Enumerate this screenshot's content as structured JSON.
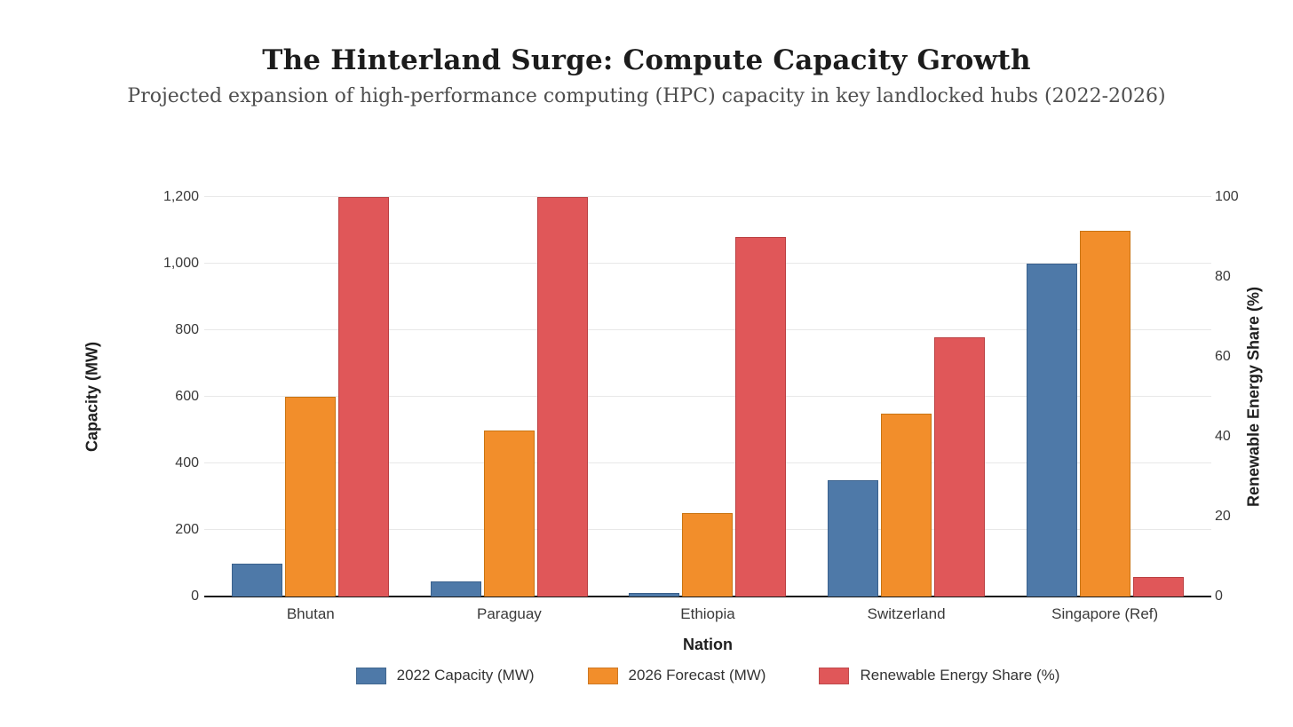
{
  "chart_data": {
    "type": "bar",
    "title": "The Hinterland Surge: Compute Capacity Growth",
    "subtitle": "Projected expansion of high-performance computing (HPC) capacity in key landlocked hubs (2022-2026)",
    "categories": [
      "Bhutan",
      "Paraguay",
      "Ethiopia",
      "Switzerland",
      "Singapore (Ref)"
    ],
    "series": [
      {
        "name": "2022 Capacity (MW)",
        "axis": "left",
        "color": "#4E79A8",
        "border_color": "#3A618D",
        "values": [
          100,
          45,
          10,
          350,
          1000
        ]
      },
      {
        "name": "2026 Forecast (MW)",
        "axis": "left",
        "color": "#F28E2B",
        "border_color": "#C97412",
        "values": [
          600,
          500,
          250,
          550,
          1100
        ]
      },
      {
        "name": "Renewable Energy Share (%)",
        "axis": "right",
        "color": "#E05759",
        "border_color": "#BA4042",
        "values": [
          100,
          100,
          90,
          65,
          5
        ]
      }
    ],
    "x_axis": {
      "title": "Nation"
    },
    "left_axis": {
      "title": "Capacity (MW)",
      "min": 0,
      "max": 1200,
      "step": 200,
      "tick_labels": [
        "0",
        "200",
        "400",
        "600",
        "800",
        "1,000",
        "1,200"
      ]
    },
    "right_axis": {
      "title": "Renewable Energy Share (%)",
      "min": 0,
      "max": 100,
      "step": 20,
      "tick_labels": [
        "0",
        "20",
        "40",
        "60",
        "80",
        "100"
      ]
    },
    "legend_position": "bottom",
    "grid": true
  },
  "colors": {
    "background": "#ffffff",
    "gridline": "#e8e8e8",
    "axis_line": "#161616",
    "tick_text": "#3a3a3a",
    "title_text": "#1c1c1c",
    "subtitle_text": "#4e4e4e"
  }
}
